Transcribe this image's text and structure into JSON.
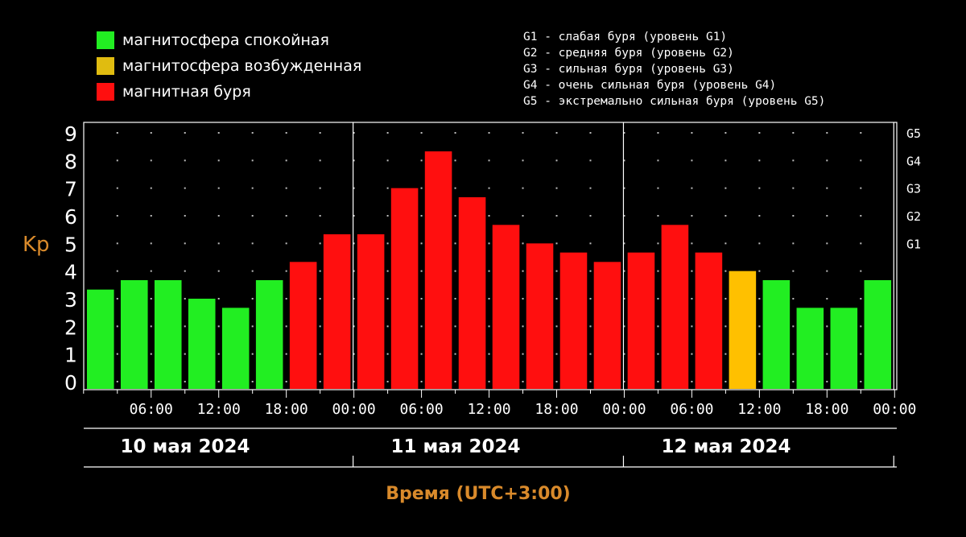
{
  "legend": {
    "categories": [
      {
        "label": "магнитосфера спокойная",
        "color": "#22ee22"
      },
      {
        "label": "магнитосфера возбужденная",
        "color": "#ffc000"
      },
      {
        "label": "магнитная буря",
        "color": "#ff0f0f"
      }
    ],
    "storm_levels": [
      "G1 - слабая буря (уровень G1)",
      "G2 - средняя буря (уровень G2)",
      "G3 - сильная буря (уровень G3)",
      "G4 - очень сильная буря (уровень G4)",
      "G5 - экстремально сильная буря (уровень G5)"
    ]
  },
  "chart_data": {
    "type": "bar",
    "ylabel": "Kp",
    "xlabel": "Время (UTC+3:00)",
    "ylim": [
      0,
      9
    ],
    "y_ticks": [
      "0",
      "1",
      "2",
      "3",
      "4",
      "5",
      "6",
      "7",
      "8",
      "9"
    ],
    "g_levels": [
      {
        "label": "G1",
        "kp": 5
      },
      {
        "label": "G2",
        "kp": 6
      },
      {
        "label": "G3",
        "kp": 7
      },
      {
        "label": "G4",
        "kp": 8
      },
      {
        "label": "G5",
        "kp": 9
      }
    ],
    "x_tick_labels": [
      "06:00",
      "12:00",
      "18:00",
      "00:00",
      "06:00",
      "12:00",
      "18:00",
      "00:00",
      "06:00",
      "12:00",
      "18:00",
      "00:00"
    ],
    "days": [
      "10 мая 2024",
      "11 мая 2024",
      "12 мая 2024"
    ],
    "values": [
      3.33,
      3.67,
      3.67,
      3.0,
      2.67,
      3.67,
      4.33,
      5.33,
      5.33,
      7.0,
      8.33,
      6.67,
      5.67,
      5.0,
      4.67,
      4.33,
      4.67,
      5.67,
      4.67,
      4.0,
      3.67,
      2.67,
      2.67,
      3.67
    ],
    "colors": {
      "quiet": "#22ee22",
      "active": "#ffc000",
      "storm": "#ff0f0f"
    },
    "grid": true
  }
}
